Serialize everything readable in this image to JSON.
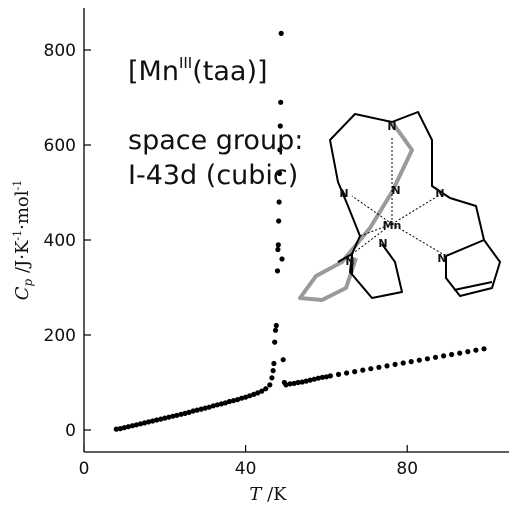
{
  "chart_data": {
    "type": "scatter",
    "title": "",
    "xlabel": "T/K",
    "ylabel": "Cp/J·K-1·mol-1",
    "xlim": [
      0,
      100
    ],
    "ylim": [
      -30,
      880
    ],
    "xticks": [
      0,
      40,
      80
    ],
    "yticks": [
      0,
      200,
      400,
      600,
      800
    ],
    "grid": false,
    "legend": "none",
    "series": [
      {
        "marker_color": "#000000",
        "points": [
          [
            8,
            2
          ],
          [
            9,
            3
          ],
          [
            10,
            5
          ],
          [
            11,
            7
          ],
          [
            12,
            9
          ],
          [
            13,
            11
          ],
          [
            14,
            13
          ],
          [
            15,
            15
          ],
          [
            16,
            17
          ],
          [
            17,
            19
          ],
          [
            18,
            21
          ],
          [
            19,
            23
          ],
          [
            20,
            25
          ],
          [
            21,
            27
          ],
          [
            22,
            29
          ],
          [
            23,
            31
          ],
          [
            24,
            33
          ],
          [
            25,
            35
          ],
          [
            26,
            37
          ],
          [
            27,
            40
          ],
          [
            28,
            42
          ],
          [
            29,
            44
          ],
          [
            30,
            46
          ],
          [
            31,
            48
          ],
          [
            32,
            51
          ],
          [
            33,
            53
          ],
          [
            34,
            55
          ],
          [
            35,
            57
          ],
          [
            36,
            60
          ],
          [
            37,
            62
          ],
          [
            38,
            64
          ],
          [
            39,
            67
          ],
          [
            40,
            69
          ],
          [
            41,
            72
          ],
          [
            42,
            75
          ],
          [
            43,
            78
          ],
          [
            44,
            82
          ],
          [
            45,
            87
          ],
          [
            46,
            95
          ],
          [
            46.5,
            110
          ],
          [
            46.8,
            125
          ],
          [
            47.0,
            140
          ],
          [
            47.2,
            185
          ],
          [
            47.4,
            210
          ],
          [
            47.6,
            220
          ],
          [
            47.9,
            335
          ],
          [
            48.0,
            380
          ],
          [
            48.1,
            390
          ],
          [
            48.2,
            440
          ],
          [
            48.3,
            480
          ],
          [
            48.4,
            540
          ],
          [
            48.5,
            590
          ],
          [
            48.6,
            640
          ],
          [
            48.7,
            690
          ],
          [
            48.8,
            835
          ],
          [
            49.0,
            360
          ],
          [
            49.3,
            148
          ],
          [
            49.6,
            100
          ],
          [
            50,
            95
          ],
          [
            51,
            97
          ],
          [
            52,
            98
          ],
          [
            53,
            100
          ],
          [
            54,
            101
          ],
          [
            55,
            103
          ],
          [
            56,
            105
          ],
          [
            57,
            107
          ],
          [
            58,
            109
          ],
          [
            59,
            111
          ],
          [
            60,
            112
          ],
          [
            61,
            114
          ],
          [
            63,
            117
          ],
          [
            65,
            120
          ],
          [
            67,
            123
          ],
          [
            69,
            126
          ],
          [
            71,
            129
          ],
          [
            73,
            132
          ],
          [
            75,
            135
          ],
          [
            77,
            138
          ],
          [
            79,
            141
          ],
          [
            81,
            144
          ],
          [
            83,
            147
          ],
          [
            85,
            150
          ],
          [
            87,
            153
          ],
          [
            89,
            156
          ],
          [
            91,
            159
          ],
          [
            93,
            162
          ],
          [
            95,
            165
          ],
          [
            97,
            168
          ],
          [
            99,
            171
          ]
        ]
      }
    ]
  },
  "annotations": {
    "compound_prefix": "[Mn",
    "compound_superscript": "III",
    "compound_suffix": "(taa)]",
    "space_group_line1": "space group:",
    "space_group_line2": "I-43d (cubic)"
  },
  "molecule_labels": {
    "metal": "Mn",
    "nitrogen": "N"
  },
  "axis_labels": {
    "x_var": "T",
    "x_unit": " /K",
    "y_var": "C",
    "y_sub": "p",
    "y_unit_a": " /J·K",
    "y_exp_a": "-1",
    "y_unit_b": "·mol",
    "y_exp_b": "-1"
  }
}
